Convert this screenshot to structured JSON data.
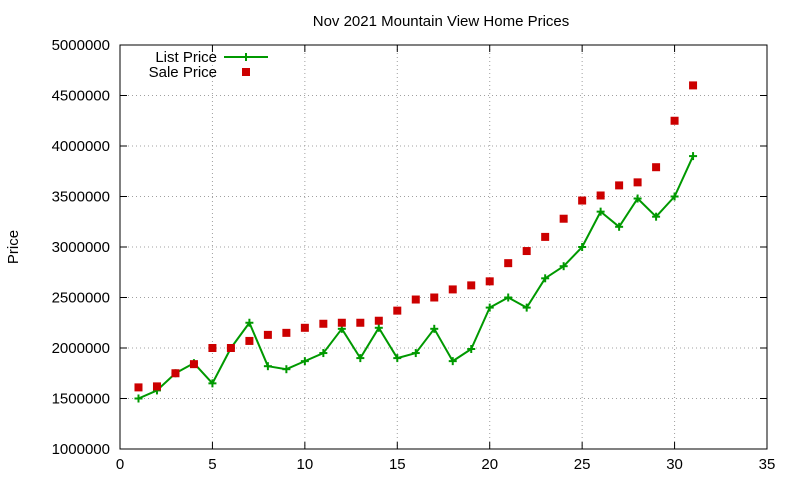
{
  "chart_data": {
    "type": "line",
    "title": "Nov 2021 Mountain View Home Prices",
    "xlabel": "",
    "ylabel": "Price",
    "xlim": [
      0,
      35
    ],
    "ylim": [
      1000000,
      5000000
    ],
    "x_ticks": [
      0,
      5,
      10,
      15,
      20,
      25,
      30,
      35
    ],
    "x_tick_labels": [
      "0",
      "5",
      "10",
      "15",
      "20",
      "25",
      "30",
      "35"
    ],
    "y_ticks": [
      1000000,
      1500000,
      2000000,
      2500000,
      3000000,
      3500000,
      4000000,
      4500000,
      5000000
    ],
    "y_tick_labels": [
      "1000000",
      "1500000",
      "2000000",
      "2500000",
      "3000000",
      "3500000",
      "4000000",
      "4500000",
      "5000000"
    ],
    "grid": true,
    "legend_position": "top-left",
    "series": [
      {
        "name": "List Price",
        "style": "line-plus",
        "color": "#009900",
        "x": [
          1,
          2,
          3,
          4,
          5,
          6,
          7,
          8,
          9,
          10,
          11,
          12,
          13,
          14,
          15,
          16,
          17,
          18,
          19,
          20,
          21,
          22,
          23,
          24,
          25,
          26,
          27,
          28,
          29,
          30,
          31
        ],
        "y": [
          1500000,
          1580000,
          1750000,
          1850000,
          1650000,
          2000000,
          2250000,
          1820000,
          1790000,
          1870000,
          1950000,
          2190000,
          1900000,
          2200000,
          1900000,
          1950000,
          2190000,
          1870000,
          1990000,
          2400000,
          2500000,
          2400000,
          2690000,
          2810000,
          3000000,
          3350000,
          3200000,
          3480000,
          3300000,
          3500000,
          3900000
        ]
      },
      {
        "name": "Sale Price",
        "style": "square-points",
        "color": "#cc0000",
        "x": [
          1,
          2,
          3,
          4,
          5,
          6,
          7,
          8,
          9,
          10,
          11,
          12,
          13,
          14,
          15,
          16,
          17,
          18,
          19,
          20,
          21,
          22,
          23,
          24,
          25,
          26,
          27,
          28,
          29,
          30,
          31
        ],
        "y": [
          1610000,
          1620000,
          1750000,
          1840000,
          2000000,
          2000000,
          2070000,
          2130000,
          2150000,
          2200000,
          2240000,
          2250000,
          2250000,
          2270000,
          2370000,
          2480000,
          2500000,
          2580000,
          2620000,
          2660000,
          2840000,
          2960000,
          3100000,
          3280000,
          3460000,
          3510000,
          3610000,
          3640000,
          3790000,
          4250000,
          4600000
        ]
      }
    ]
  }
}
